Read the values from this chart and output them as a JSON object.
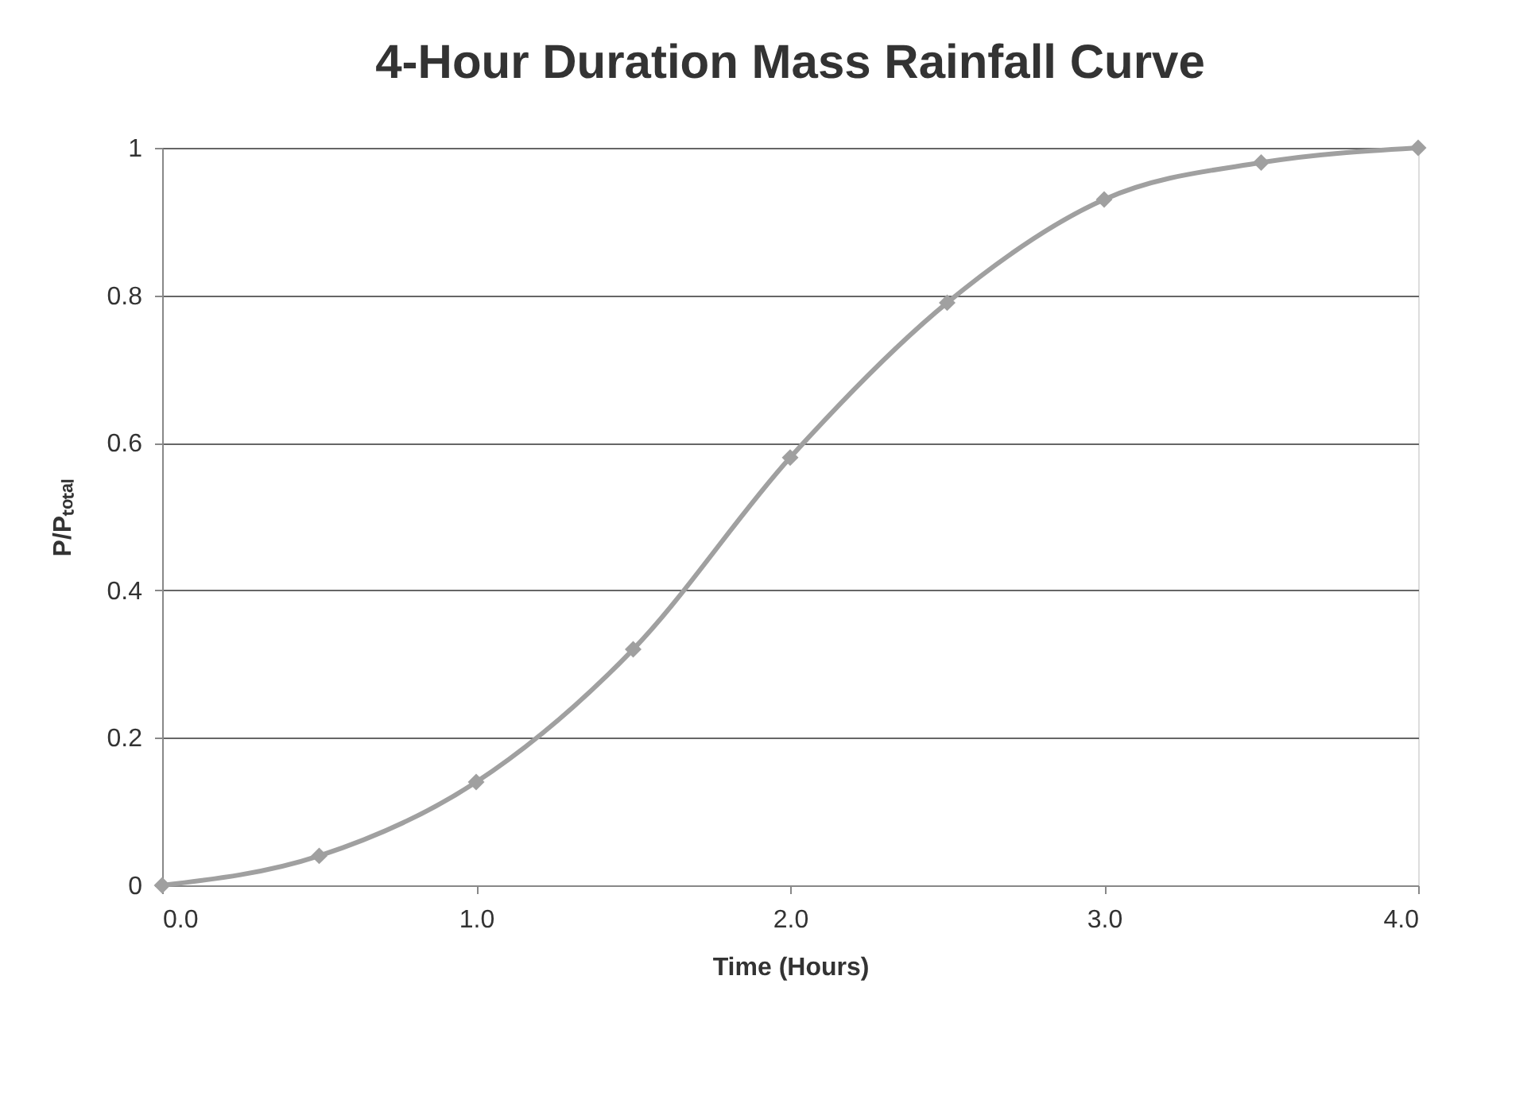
{
  "chart_data": {
    "type": "line",
    "title": "4-Hour Duration Mass Rainfall Curve",
    "xlabel": "Time (Hours)",
    "ylabel": "P/Pₜₒₜₐₗ",
    "x": [
      0,
      0.5,
      1.0,
      1.5,
      2.0,
      2.5,
      3.0,
      3.5,
      4.0
    ],
    "series": [
      {
        "color": "#a0a0a0",
        "values": [
          0,
          0.04,
          0.14,
          0.32,
          0.58,
          0.79,
          0.93,
          0.98,
          1.0
        ]
      }
    ],
    "xlim": [
      0,
      4
    ],
    "xticks": [
      {
        "value": 0,
        "label": "0.0"
      },
      {
        "value": 1,
        "label": "1.0"
      },
      {
        "value": 2,
        "label": "2.0"
      },
      {
        "value": 3,
        "label": "3.0"
      },
      {
        "value": 4,
        "label": "4.0"
      }
    ],
    "ylim": [
      0,
      1
    ],
    "yticks": [
      0,
      0.2,
      0.4,
      0.6,
      0.8,
      1
    ],
    "grid": "y",
    "marker": "diamond",
    "line_style": "solid"
  }
}
